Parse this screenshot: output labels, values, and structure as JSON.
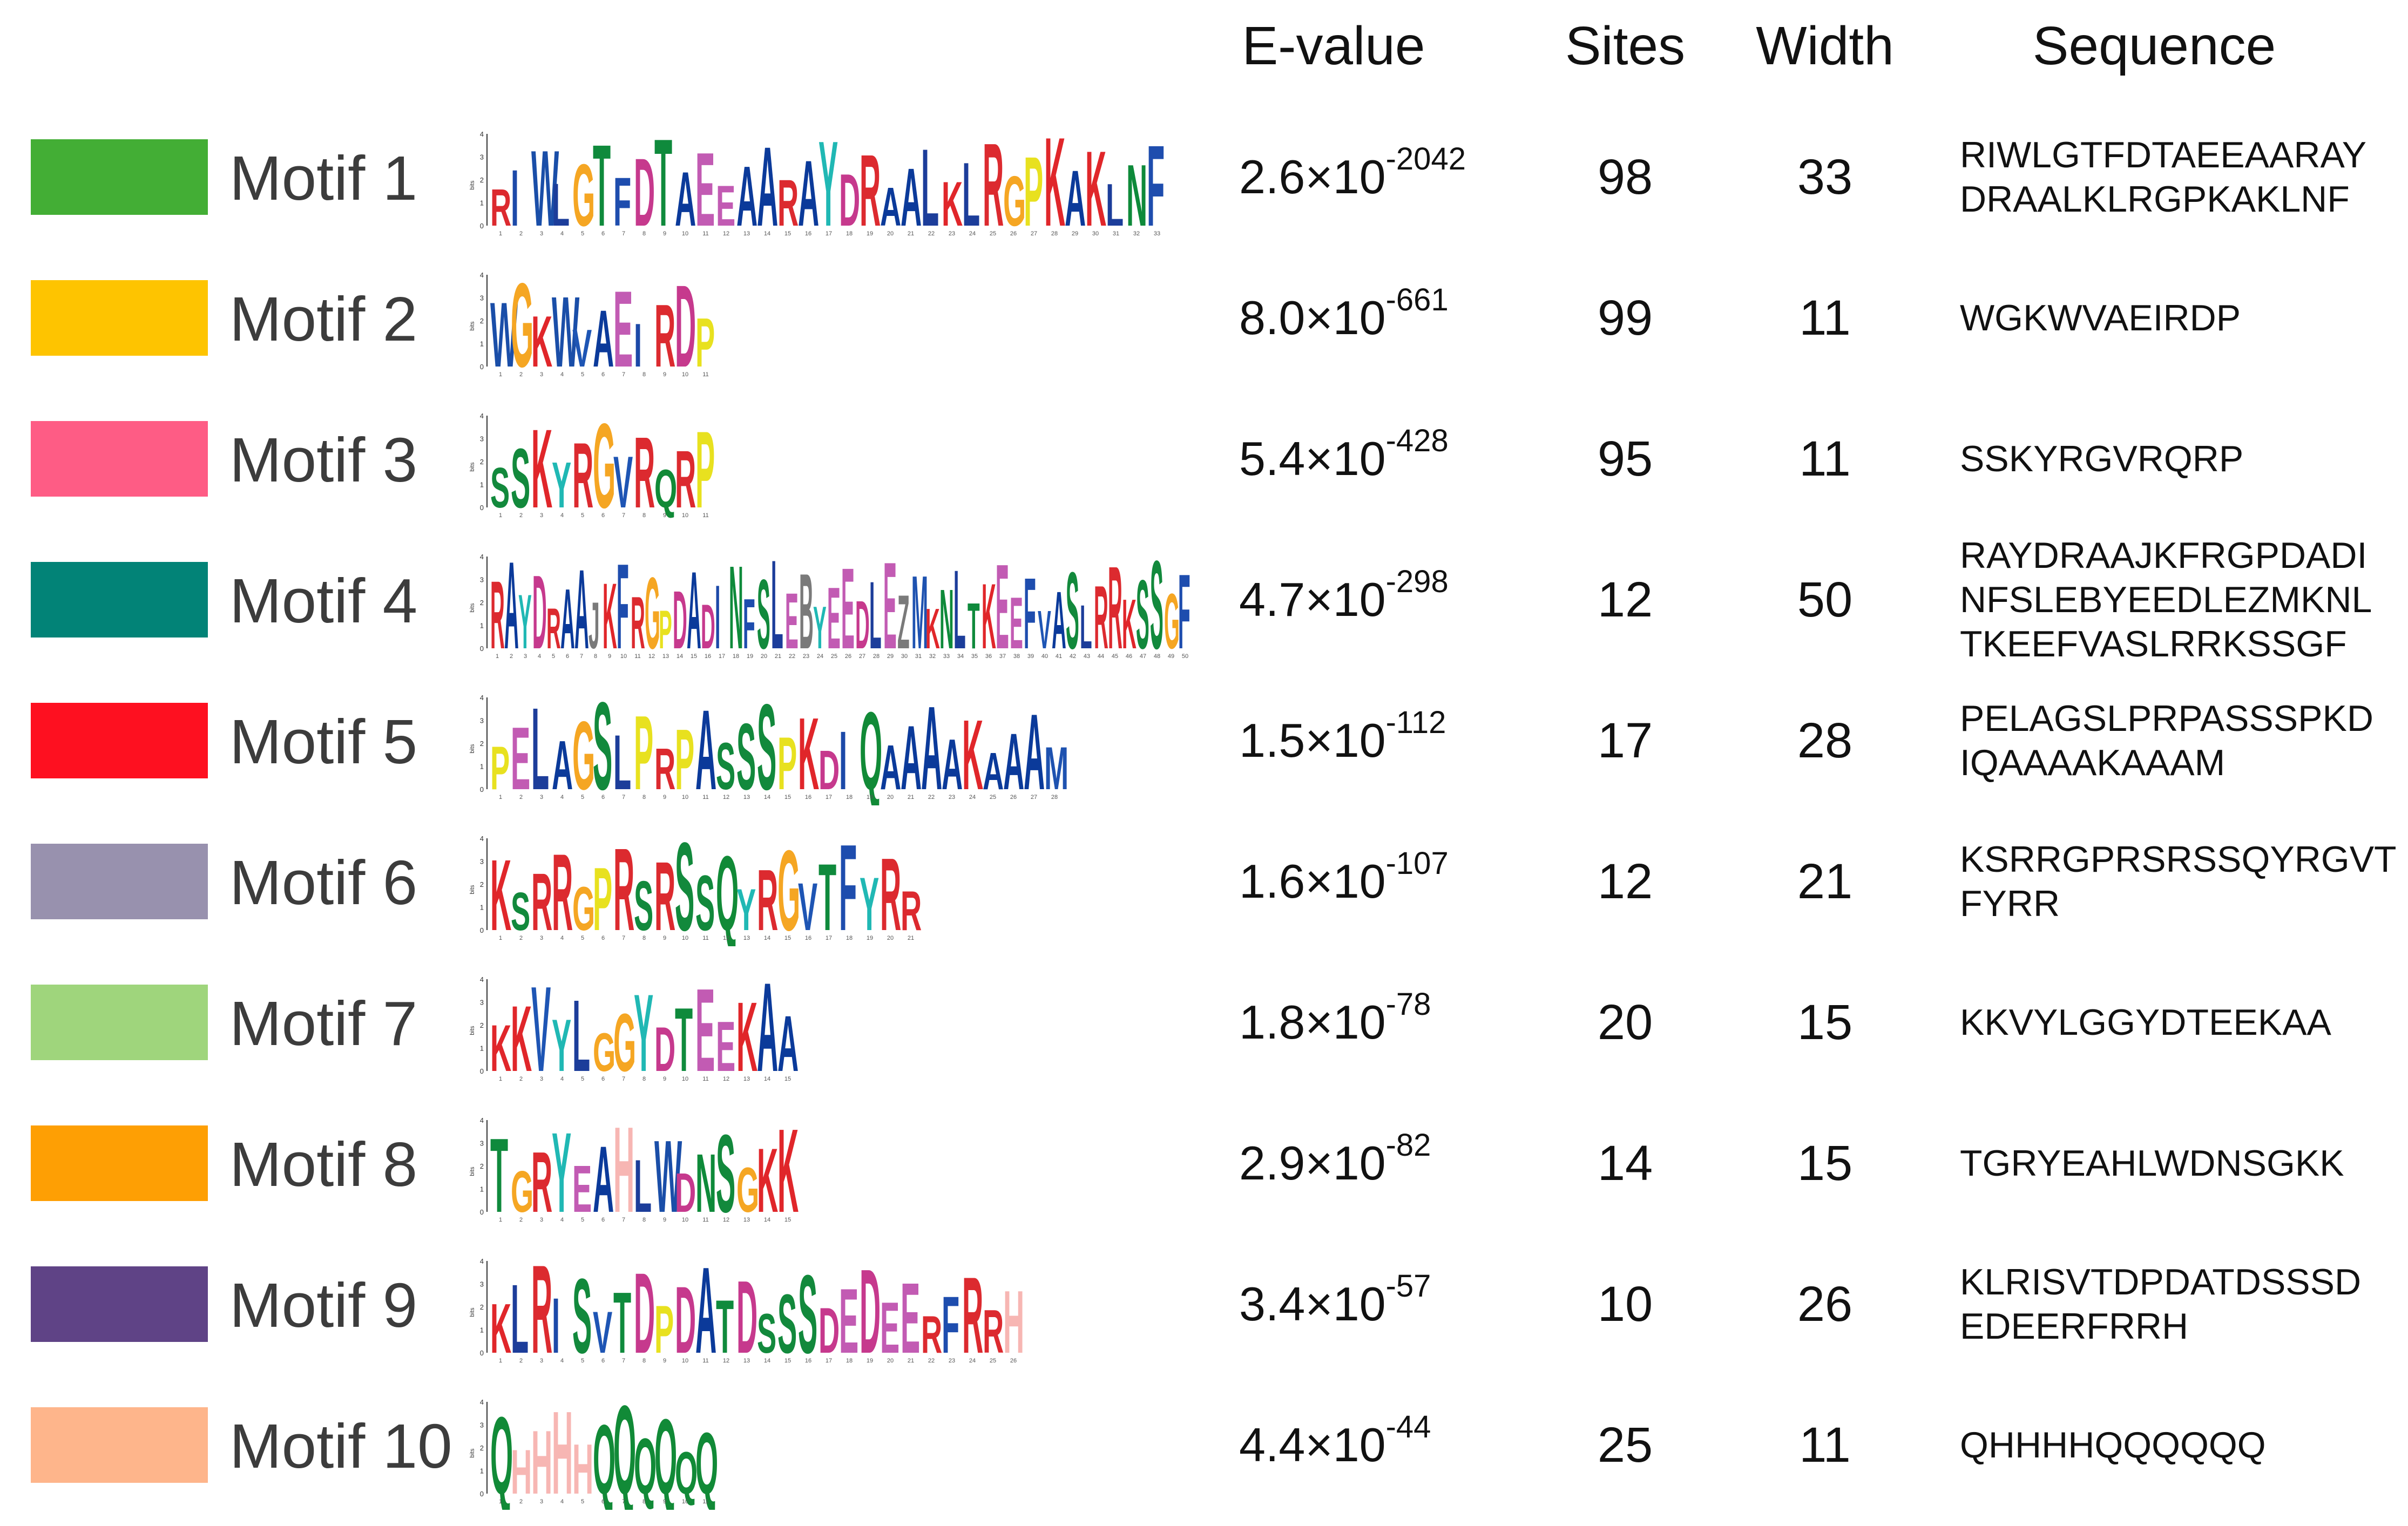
{
  "headers": {
    "evalue": "E-value",
    "sites": "Sites",
    "width": "Width",
    "sequence": "Sequence"
  },
  "logo_axis": {
    "ylabel": "bits",
    "ticks": [
      "0",
      "1",
      "2",
      "3",
      "4"
    ]
  },
  "motifs": [
    {
      "label": "Motif 1",
      "color": "#43ae35",
      "evalue_base": "2.6×10",
      "evalue_exp": "-2042",
      "sites": "98",
      "width": "33",
      "sequence": "RIWLGTFDTAEEAARAYDRAALKLRGPKAKLNF"
    },
    {
      "label": "Motif 2",
      "color": "#fec400",
      "evalue_base": "8.0×10",
      "evalue_exp": "-661",
      "sites": "99",
      "width": "11",
      "sequence": "WGKWVAEIRDP"
    },
    {
      "label": "Motif 3",
      "color": "#fe5c85",
      "evalue_base": "5.4×10",
      "evalue_exp": "-428",
      "sites": "95",
      "width": "11",
      "sequence": "SSKYRGVRQRP"
    },
    {
      "label": "Motif 4",
      "color": "#028377",
      "evalue_base": "4.7×10",
      "evalue_exp": "-298",
      "sites": "12",
      "width": "50",
      "sequence": "RAYDRAAJKFRGPDADINFSLEBYEEDLEZMKNLTKEEFVASLRRKSSGF"
    },
    {
      "label": "Motif 5",
      "color": "#fe1020",
      "evalue_base": "1.5×10",
      "evalue_exp": "-112",
      "sites": "17",
      "width": "28",
      "sequence": "PELAGSLPRPASSSPKDIQAAAAKAAAM"
    },
    {
      "label": "Motif 6",
      "color": "#9891ae",
      "evalue_base": "1.6×10",
      "evalue_exp": "-107",
      "sites": "12",
      "width": "21",
      "sequence": "KSRRGPRSRSSQYRGVTFYRR"
    },
    {
      "label": "Motif 7",
      "color": "#9fd57c",
      "evalue_base": "1.8×10",
      "evalue_exp": "-78",
      "sites": "20",
      "width": "15",
      "sequence": "KKVYLGGYDTEEKAA"
    },
    {
      "label": "Motif 8",
      "color": "#fe9f04",
      "evalue_base": "2.9×10",
      "evalue_exp": "-82",
      "sites": "14",
      "width": "15",
      "sequence": "TGRYEAHLWDNSGKK"
    },
    {
      "label": "Motif 9",
      "color": "#5f4386",
      "evalue_base": "3.4×10",
      "evalue_exp": "-57",
      "sites": "10",
      "width": "26",
      "sequence": "KLRISVTDPDATDSSSDEDEERFRRH"
    },
    {
      "label": "Motif 10",
      "color": "#feb58b",
      "evalue_base": "4.4×10",
      "evalue_exp": "-44",
      "sites": "25",
      "width": "11",
      "sequence": "QHHHHQQQQQQ"
    }
  ],
  "residue_colors": {
    "A": "#0b3a9a",
    "C": "#1a6ec2",
    "D": "#c6398d",
    "E": "#c25bb3",
    "F": "#1e4dae",
    "G": "#f5a623",
    "H": "#f7b6b3",
    "I": "#1c49a8",
    "K": "#e0262a",
    "L": "#1c3d9a",
    "M": "#1e52b0",
    "N": "#0e8a3a",
    "P": "#e8e11f",
    "Q": "#118a37",
    "R": "#dc2a2f",
    "S": "#12893c",
    "T": "#0f8a3c",
    "V": "#1e55b4",
    "W": "#1a4ea8",
    "Y": "#20b8b4",
    "B": "#7a7a7a",
    "J": "#7a7a7a",
    "Z": "#7a7a7a",
    "X": "#7a7a7a"
  }
}
